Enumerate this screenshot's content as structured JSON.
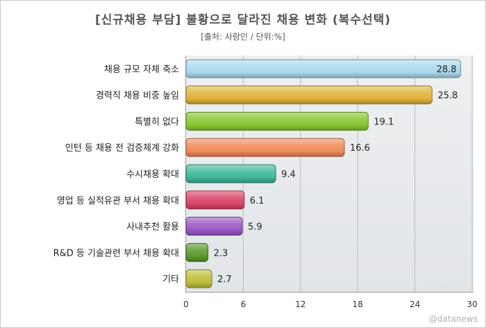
{
  "title": "[신규채용 부담] 불황으로 달라진 채용 변화 (복수선택)",
  "subtitle": "[출처: 사람인 / 단위:%]",
  "watermark": "@datanews",
  "chart_data": {
    "type": "bar",
    "orientation": "horizontal",
    "categories": [
      "채용 규모 자체 축소",
      "경력직 채용 비중 높임",
      "특별히 없다",
      "인턴 등 채용 전 검증체계 강화",
      "수시채용 확대",
      "영업 등 실적유관 부서 채용 확대",
      "사내추천 활용",
      "R&D 등 기술관련 부서 채용 확대",
      "기타"
    ],
    "values": [
      28.8,
      25.8,
      19.1,
      16.6,
      9.4,
      6.1,
      5.9,
      2.3,
      2.7
    ],
    "value_labels": [
      "28.8",
      "25.8",
      "19.1",
      "16.6",
      "9.4",
      "6.1",
      "5.9",
      "2.3",
      "2.7"
    ],
    "colors": [
      "#a9d8ec",
      "#e0b33c",
      "#86c831",
      "#ef8a5a",
      "#41b79a",
      "#d9456b",
      "#9b57c7",
      "#5b9a2e",
      "#bfbd3c"
    ],
    "xlim": [
      0,
      30
    ],
    "xticks": [
      0,
      6,
      12,
      18,
      24,
      30
    ],
    "xtick_labels": [
      "0",
      "6",
      "12",
      "18",
      "24",
      "30"
    ],
    "grid": true,
    "unit": "%"
  }
}
